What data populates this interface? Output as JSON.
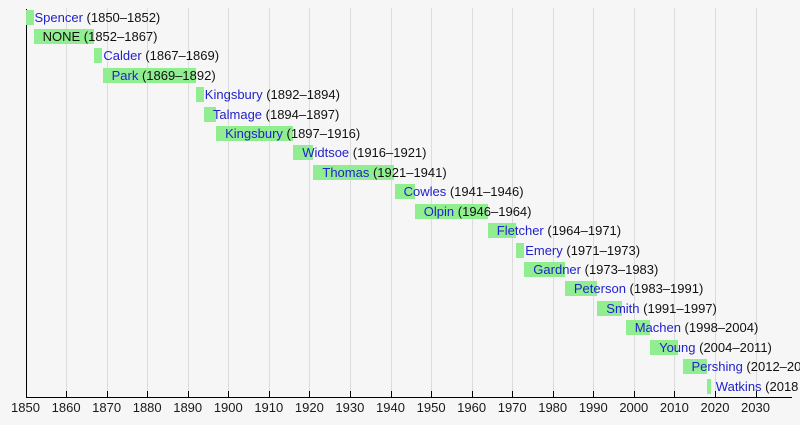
{
  "chart_data": {
    "type": "timeline",
    "title": "",
    "x_axis": {
      "tick_years": [
        1850,
        1860,
        1870,
        1880,
        1890,
        1900,
        1910,
        1920,
        1930,
        1940,
        1950,
        1960,
        1970,
        1980,
        1990,
        2000,
        2010,
        2020,
        2030
      ],
      "range": [
        1850,
        2039
      ],
      "grid": true
    },
    "bars": [
      {
        "name": "Spencer",
        "dates": "(1850–1852)",
        "start": 1850,
        "end": 1852,
        "is_link": true
      },
      {
        "name": "NONE",
        "dates": "(1852–1867)",
        "start": 1852,
        "end": 1867,
        "is_link": false
      },
      {
        "name": "Calder",
        "dates": "(1867–1869)",
        "start": 1867,
        "end": 1869,
        "is_link": true
      },
      {
        "name": "Park",
        "dates": "(1869–1892)",
        "start": 1869,
        "end": 1892,
        "is_link": true
      },
      {
        "name": "Kingsbury",
        "dates": "(1892–1894)",
        "start": 1892,
        "end": 1894,
        "is_link": true
      },
      {
        "name": "Talmage",
        "dates": "(1894–1897)",
        "start": 1894,
        "end": 1897,
        "is_link": true
      },
      {
        "name": "Kingsbury",
        "dates": "(1897–1916)",
        "start": 1897,
        "end": 1916,
        "is_link": true
      },
      {
        "name": "Widtsoe",
        "dates": "(1916–1921)",
        "start": 1916,
        "end": 1921,
        "is_link": true
      },
      {
        "name": "Thomas",
        "dates": "(1921–1941)",
        "start": 1921,
        "end": 1941,
        "is_link": true
      },
      {
        "name": "Cowles",
        "dates": "(1941–1946)",
        "start": 1941,
        "end": 1946,
        "is_link": true
      },
      {
        "name": "Olpin",
        "dates": "(1946–1964)",
        "start": 1946,
        "end": 1964,
        "is_link": true
      },
      {
        "name": "Fletcher",
        "dates": "(1964–1971)",
        "start": 1964,
        "end": 1971,
        "is_link": true
      },
      {
        "name": "Emery",
        "dates": "(1971–1973)",
        "start": 1971,
        "end": 1973,
        "is_link": true
      },
      {
        "name": "Gardner",
        "dates": "(1973–1983)",
        "start": 1973,
        "end": 1983,
        "is_link": true
      },
      {
        "name": "Peterson",
        "dates": "(1983–1991)",
        "start": 1983,
        "end": 1991,
        "is_link": true
      },
      {
        "name": "Smith",
        "dates": "(1991–1997)",
        "start": 1991,
        "end": 1997,
        "is_link": true
      },
      {
        "name": "Machen",
        "dates": "(1998–2004)",
        "start": 1998,
        "end": 2004,
        "is_link": true
      },
      {
        "name": "Young",
        "dates": "(2004–2011)",
        "start": 2004,
        "end": 2011,
        "is_link": true
      },
      {
        "name": "Pershing",
        "dates": "(2012–20",
        "start": 2012,
        "end": 2018,
        "is_link": true
      },
      {
        "name": "Watkins",
        "dates": "(2018",
        "start": 2018,
        "end": 2019,
        "is_link": true
      }
    ],
    "colors": {
      "bar": "#90ee90",
      "link": "#2222cc",
      "text": "#111111",
      "gridline": "#dcdcdc",
      "axis": "#000000",
      "background": "#f6f6f7"
    }
  }
}
